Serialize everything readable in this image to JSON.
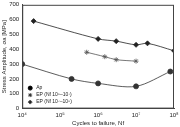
{
  "chart_data": {
    "type": "scatter",
    "x_label": "Cycles to failure, Nf",
    "y_label": "Stress Amplitude, σa [MPa]",
    "log": "x",
    "grid": false,
    "legend": "lower left",
    "xlim": [
      10000,
      100000000
    ],
    "xticks": [
      {
        "value": 10000,
        "label": "10⁴"
      },
      {
        "value": 100000,
        "label": "10⁵"
      },
      {
        "value": 1000000,
        "label": "10⁶"
      },
      {
        "value": 10000000,
        "label": "10⁷"
      },
      {
        "value": 100000000,
        "label": "10⁸"
      }
    ],
    "ylim": [
      0,
      700
    ],
    "yticks": [
      0,
      100,
      200,
      300,
      400,
      500,
      600,
      700
    ],
    "series": [
      {
        "name": "Ap",
        "color": "#333333",
        "marker": "circle",
        "line_style": "solid",
        "x": [
          10000,
          200000,
          1000000,
          10000000,
          80000000
        ],
        "values": [
          300,
          200,
          170,
          150,
          250
        ]
      },
      {
        "name": "EP (Nf 10⁵–10⁷)",
        "color": "#555555",
        "marker": "star",
        "line_style": "solid",
        "x": [
          500000,
          1500000,
          3000000,
          10000000
        ],
        "values": [
          380,
          350,
          330,
          320
        ]
      },
      {
        "name": "EP (Nf 10⁷–10⁸)",
        "color": "#222222",
        "marker": "diamond",
        "line_style": "solid",
        "x": [
          20000,
          1000000,
          3000000,
          10000000,
          20000000,
          100000000
        ],
        "values": [
          590,
          470,
          455,
          430,
          440,
          390
        ]
      }
    ]
  }
}
